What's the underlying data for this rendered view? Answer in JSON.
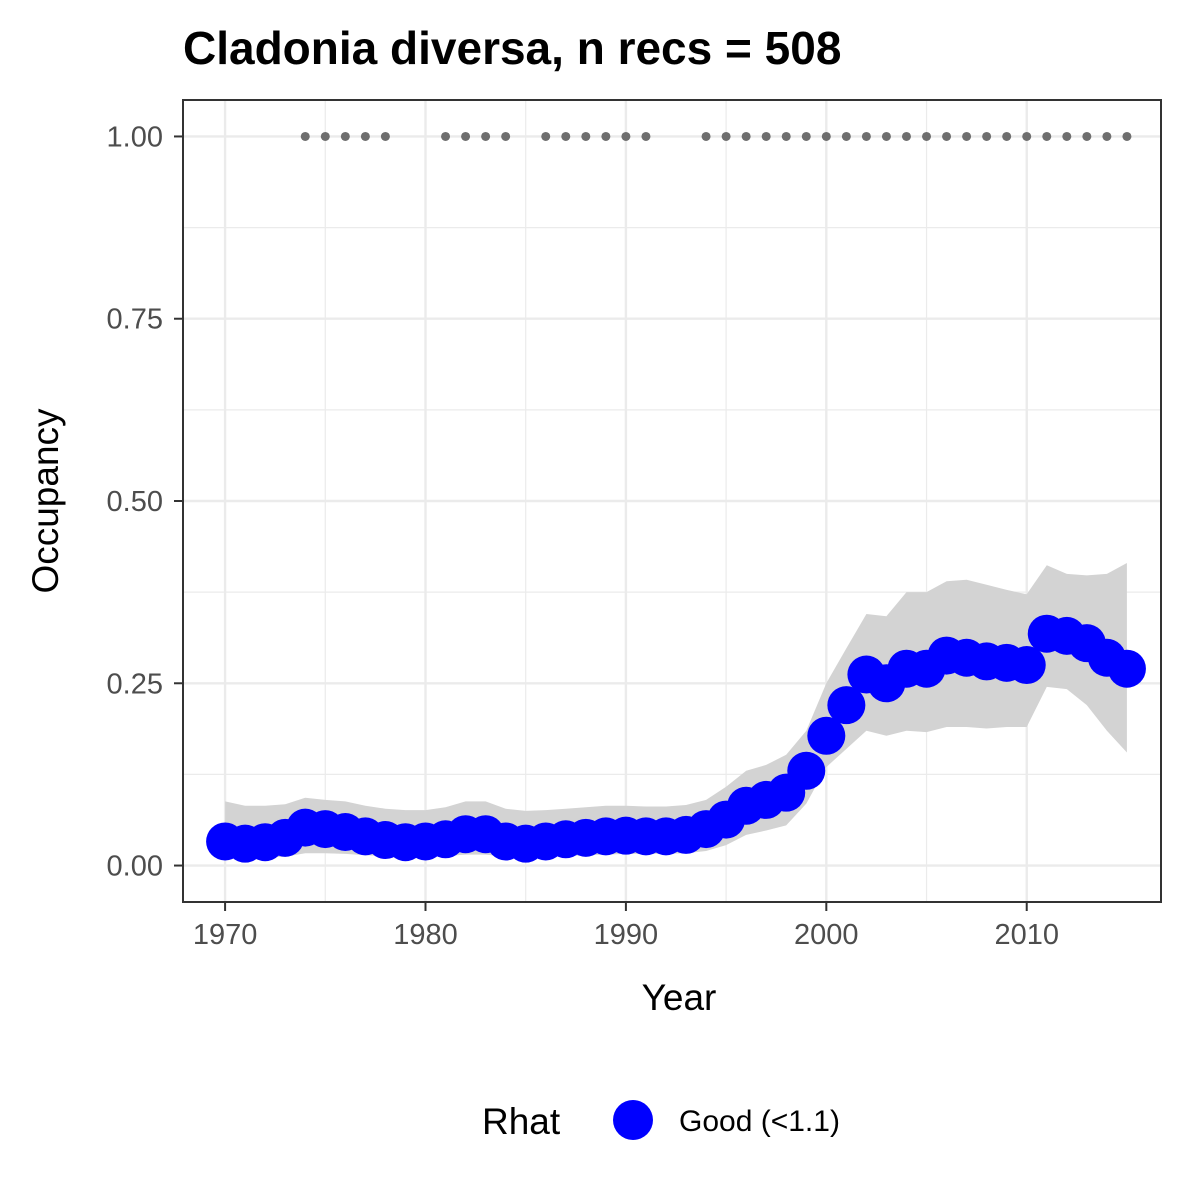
{
  "chart_data": {
    "type": "line",
    "title": "Cladonia diversa, n recs = 508",
    "xlabel": "Year",
    "ylabel": "Occupancy",
    "xlim": [
      1967.9,
      2016.7
    ],
    "ylim": [
      -0.05,
      1.05
    ],
    "x_ticks": [
      1970,
      1980,
      1990,
      2000,
      2010
    ],
    "x_tick_labels": [
      "1970",
      "1980",
      "1990",
      "2000",
      "2010"
    ],
    "y_ticks": [
      0,
      0.25,
      0.5,
      0.75,
      1.0
    ],
    "y_tick_labels": [
      "0.00",
      "0.25",
      "0.50",
      "0.75",
      "1.00"
    ],
    "grid": true,
    "legend": {
      "title": "Rhat",
      "placement": "bottom",
      "entries": [
        {
          "label": "Good (<1.1)",
          "color": "#0000ff"
        }
      ]
    },
    "series": [
      {
        "name": "Good (<1.1)",
        "color": "#0000ff",
        "x": [
          1970,
          1971,
          1972,
          1973,
          1974,
          1975,
          1976,
          1977,
          1978,
          1979,
          1980,
          1981,
          1982,
          1983,
          1984,
          1985,
          1986,
          1987,
          1988,
          1989,
          1990,
          1991,
          1992,
          1993,
          1994,
          1995,
          1996,
          1997,
          1998,
          1999,
          2000,
          2001,
          2002,
          2003,
          2004,
          2005,
          2006,
          2007,
          2008,
          2009,
          2010,
          2011,
          2012,
          2013,
          2014,
          2015
        ],
        "values": [
          0.033,
          0.03,
          0.032,
          0.038,
          0.052,
          0.05,
          0.046,
          0.04,
          0.035,
          0.032,
          0.033,
          0.036,
          0.043,
          0.043,
          0.033,
          0.03,
          0.033,
          0.036,
          0.038,
          0.04,
          0.041,
          0.04,
          0.04,
          0.042,
          0.05,
          0.063,
          0.082,
          0.09,
          0.1,
          0.13,
          0.178,
          0.22,
          0.262,
          0.25,
          0.27,
          0.27,
          0.288,
          0.285,
          0.28,
          0.278,
          0.275,
          0.318,
          0.315,
          0.305,
          0.285,
          0.27
        ],
        "ci_lower": [
          0.012,
          0.011,
          0.011,
          0.012,
          0.017,
          0.017,
          0.016,
          0.014,
          0.013,
          0.012,
          0.012,
          0.013,
          0.015,
          0.015,
          0.012,
          0.011,
          0.012,
          0.013,
          0.014,
          0.015,
          0.016,
          0.016,
          0.016,
          0.017,
          0.02,
          0.028,
          0.042,
          0.048,
          0.055,
          0.085,
          0.135,
          0.16,
          0.185,
          0.178,
          0.185,
          0.183,
          0.19,
          0.19,
          0.188,
          0.19,
          0.19,
          0.245,
          0.242,
          0.22,
          0.185,
          0.155
        ],
        "ci_upper": [
          0.088,
          0.082,
          0.082,
          0.084,
          0.093,
          0.09,
          0.088,
          0.082,
          0.078,
          0.076,
          0.076,
          0.08,
          0.088,
          0.088,
          0.078,
          0.075,
          0.076,
          0.078,
          0.08,
          0.082,
          0.082,
          0.081,
          0.081,
          0.083,
          0.09,
          0.108,
          0.13,
          0.138,
          0.152,
          0.185,
          0.25,
          0.298,
          0.345,
          0.342,
          0.375,
          0.375,
          0.39,
          0.392,
          0.385,
          0.378,
          0.372,
          0.412,
          0.4,
          0.398,
          0.4,
          0.415
        ]
      },
      {
        "name": "",
        "color": "#6e6e6e",
        "type": "scatter",
        "x": [
          1974,
          1975,
          1976,
          1977,
          1978,
          1981,
          1982,
          1983,
          1984,
          1986,
          1987,
          1988,
          1989,
          1990,
          1991,
          1994,
          1995,
          1996,
          1997,
          1998,
          1999,
          2000,
          2001,
          2002,
          2003,
          2004,
          2005,
          2006,
          2007,
          2008,
          2009,
          2010,
          2011,
          2012,
          2013,
          2014,
          2015
        ],
        "values": [
          1,
          1,
          1,
          1,
          1,
          1,
          1,
          1,
          1,
          1,
          1,
          1,
          1,
          1,
          1,
          1,
          1,
          1,
          1,
          1,
          1,
          1,
          1,
          1,
          1,
          1,
          1,
          1,
          1,
          1,
          1,
          1,
          1,
          1,
          1,
          1,
          1
        ]
      }
    ]
  }
}
